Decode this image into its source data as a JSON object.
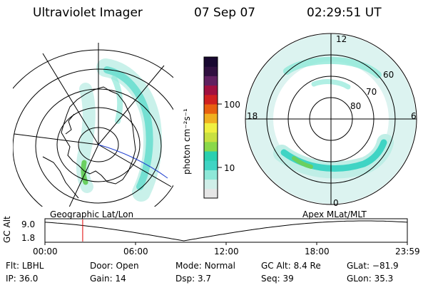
{
  "header": {
    "instrument": "Ultraviolet Imager",
    "date": "07 Sep 07",
    "time": "02:29:51 UT"
  },
  "colorbar": {
    "unit_label": "photon cm⁻²s⁻¹",
    "ticks": [
      "100",
      "10"
    ],
    "colors": [
      "#e6e6e6",
      "#cfeee8",
      "#8ee8d8",
      "#3fd4c4",
      "#2ad0b0",
      "#8ad84a",
      "#c8e040",
      "#f0f040",
      "#f0b020",
      "#e86010",
      "#d02020",
      "#a01040",
      "#602060",
      "#301040",
      "#180830"
    ]
  },
  "left_map": {
    "caption": "Geographic Lat/Lon"
  },
  "right_map": {
    "caption": "Apex MLat/MLT",
    "mlt_labels": {
      "top": "12",
      "left": "18",
      "right": "6",
      "bottom": "0"
    },
    "lat_labels": [
      "60",
      "70",
      "80"
    ]
  },
  "timeline": {
    "axis_label": "GC Alt",
    "y_max": "9.0",
    "y_min": "1.8",
    "x_ticks": [
      "00:00",
      "06:00",
      "12:00",
      "18:00",
      "23:59"
    ],
    "marker_time_hours": 2.5
  },
  "footer": {
    "row1": [
      {
        "key": "Flt:",
        "value": "LBHL"
      },
      {
        "key": "Door:",
        "value": "Open"
      },
      {
        "key": "Mode:",
        "value": "Normal"
      },
      {
        "key": "GC Alt:",
        "value": "8.4 Re"
      },
      {
        "key": "GLat:",
        "value": "−81.9"
      }
    ],
    "row2": [
      {
        "key": "IP:",
        "value": "36.0"
      },
      {
        "key": "Gain:",
        "value": "14"
      },
      {
        "key": "Dsp:",
        "value": "3.7"
      },
      {
        "key": "Seq:",
        "value": "39"
      },
      {
        "key": "GLon:",
        "value": "35.3"
      }
    ]
  }
}
